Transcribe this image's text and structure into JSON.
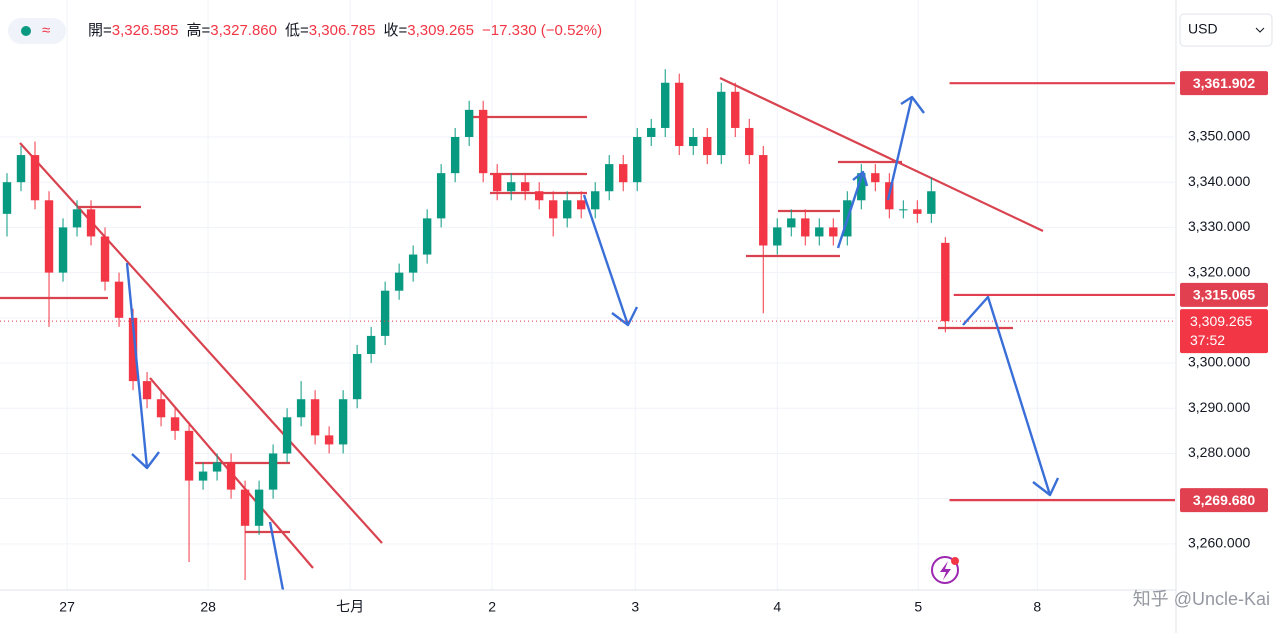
{
  "header": {
    "ohlc": [
      {
        "label": "開=",
        "value": "3,326.585"
      },
      {
        "label": "高=",
        "value": "3,327.860"
      },
      {
        "label": "低=",
        "value": "3,306.785"
      },
      {
        "label": "收=",
        "value": "3,309.265"
      }
    ],
    "change": "−17.330 (−0.52%)",
    "currency": "USD",
    "watermark": "知乎 @Uncle-Kai"
  },
  "chart_data": {
    "type": "candlestick",
    "up_color": "#089981",
    "down_color": "#f23645",
    "open": [
      3333,
      3340,
      3346,
      3336,
      3320,
      3330,
      3334,
      3328,
      3318,
      3310,
      3296,
      3292,
      3288,
      3285,
      3274,
      3276,
      3278,
      3272,
      3264,
      3272,
      3280,
      3288,
      3292,
      3284,
      3282,
      3292,
      3302,
      3306,
      3316,
      3320,
      3324,
      3332,
      3342,
      3350,
      3356,
      3342,
      3338,
      3340,
      3338,
      3336,
      3332,
      3336,
      3334,
      3338,
      3344,
      3340,
      3350,
      3352,
      3362,
      3348,
      3350,
      3346,
      3360,
      3352,
      3346,
      3326,
      3330,
      3332,
      3328,
      3330,
      3328,
      3336,
      3342,
      3340,
      3334,
      3334,
      3333,
      3326.585
    ],
    "high": [
      3342,
      3348,
      3349,
      3338,
      3332,
      3336,
      3336,
      3330,
      3320,
      3312,
      3298,
      3294,
      3290,
      3287,
      3278,
      3280,
      3280,
      3274,
      3274,
      3282,
      3290,
      3296,
      3294,
      3286,
      3294,
      3304,
      3308,
      3318,
      3322,
      3326,
      3334,
      3344,
      3352,
      3358,
      3358,
      3344,
      3342,
      3342,
      3340,
      3338,
      3338,
      3338,
      3340,
      3346,
      3346,
      3352,
      3354,
      3365,
      3364,
      3352,
      3352,
      3362,
      3362,
      3354,
      3348,
      3332,
      3334,
      3334,
      3332,
      3332,
      3338,
      3344,
      3344,
      3342,
      3336,
      3336,
      3341,
      3327.86
    ],
    "low": [
      3328,
      3338,
      3334,
      3308,
      3318,
      3328,
      3326,
      3316,
      3308,
      3294,
      3290,
      3286,
      3283,
      3256,
      3272,
      3274,
      3270,
      3252,
      3262,
      3270,
      3278,
      3286,
      3282,
      3280,
      3280,
      3290,
      3300,
      3304,
      3314,
      3318,
      3322,
      3330,
      3340,
      3348,
      3340,
      3336,
      3336,
      3336,
      3334,
      3328,
      3330,
      3332,
      3332,
      3336,
      3338,
      3338,
      3348,
      3350,
      3346,
      3346,
      3344,
      3344,
      3350,
      3344,
      3311,
      3324,
      3328,
      3326,
      3326,
      3326,
      3326,
      3334,
      3338,
      3332,
      3332,
      3331,
      3331,
      3306.785
    ],
    "close": [
      3340,
      3346,
      3336,
      3320,
      3330,
      3334,
      3328,
      3318,
      3310,
      3296,
      3292,
      3288,
      3285,
      3274,
      3276,
      3278,
      3272,
      3264,
      3272,
      3280,
      3288,
      3292,
      3284,
      3282,
      3292,
      3302,
      3306,
      3316,
      3320,
      3324,
      3332,
      3342,
      3350,
      3356,
      3342,
      3338,
      3340,
      3338,
      3336,
      3332,
      3336,
      3334,
      3338,
      3344,
      3340,
      3350,
      3352,
      3362,
      3348,
      3350,
      3346,
      3360,
      3352,
      3346,
      3326,
      3330,
      3332,
      3328,
      3330,
      3328,
      3336,
      3342,
      3340,
      3334,
      3334,
      3333,
      3338,
      3309.265
    ],
    "xlim": [
      -0.5,
      83.4
    ],
    "xticks": [
      {
        "value": 4.29,
        "label": "27"
      },
      {
        "value": 14.36,
        "label": "28"
      },
      {
        "value": 24.5,
        "label": "七月"
      },
      {
        "value": 34.64,
        "label": "2"
      },
      {
        "value": 44.86,
        "label": "3"
      },
      {
        "value": 55,
        "label": "4"
      },
      {
        "value": 65.07,
        "label": "5"
      },
      {
        "value": 73.57,
        "label": "8"
      }
    ],
    "ylim": [
      3249.8,
      3380.3
    ],
    "yticks": [
      {
        "value": 3260,
        "label": "3,260.000"
      },
      {
        "value": 3270,
        "label": "3,270.000"
      },
      {
        "value": 3280,
        "label": "3,280.000"
      },
      {
        "value": 3290,
        "label": "3,290.000"
      },
      {
        "value": 3300,
        "label": "3,300.000"
      },
      {
        "value": 3310,
        "label": "3,310.000"
      },
      {
        "value": 3320,
        "label": "3,320.000"
      },
      {
        "value": 3330,
        "label": "3,330.000"
      },
      {
        "value": 3340,
        "label": "3,340.000"
      },
      {
        "value": 3350,
        "label": "3,350.000"
      }
    ],
    "grid": true,
    "levels": [
      {
        "value": 3361.902,
        "label": "3,361.902",
        "start": 67.3
      },
      {
        "value": 3315.065,
        "label": "3,315.065",
        "start": 67.6
      },
      {
        "value": 3269.68,
        "label": "3,269.680",
        "start": 67.3
      }
    ],
    "last_price": {
      "value": 3309.265,
      "label": "3,309.265",
      "countdown": "37:52"
    },
    "level_color": "#e04050"
  }
}
